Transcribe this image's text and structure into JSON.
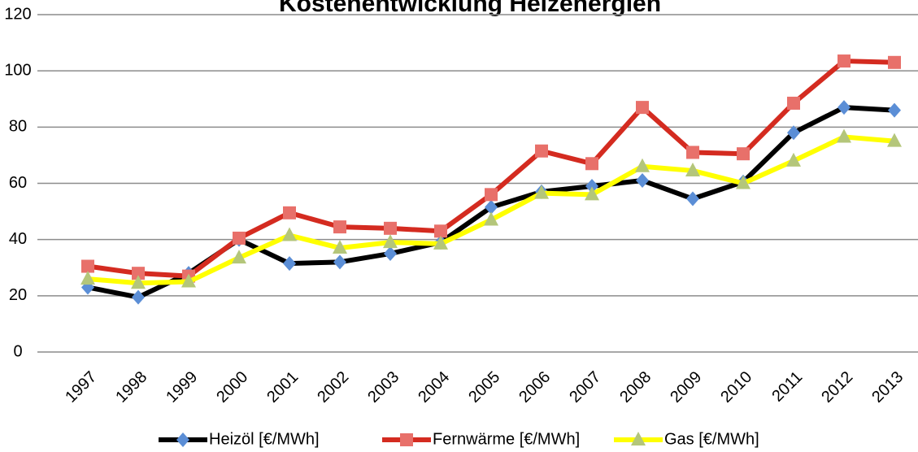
{
  "chart_data": {
    "type": "line",
    "title": "Kostenentwicklung Heizenergien",
    "categories": [
      "1997",
      "1998",
      "1999",
      "2000",
      "2001",
      "2002",
      "2003",
      "2004",
      "2005",
      "2006",
      "2007",
      "2008",
      "2009",
      "2010",
      "2011",
      "2012",
      "2013"
    ],
    "series": [
      {
        "name": "Heizöl [€/MWh]",
        "color": "#000000",
        "marker": "diamond",
        "marker_color": "#5b8ed6",
        "values": [
          23,
          19.5,
          28,
          40,
          31.5,
          32,
          35,
          39,
          51.5,
          57,
          59,
          61,
          54.5,
          60.5,
          78,
          87,
          86
        ]
      },
      {
        "name": "Fernwärme [€/MWh]",
        "color": "#d42b20",
        "marker": "square",
        "marker_color": "#e8706a",
        "values": [
          30.5,
          28,
          27,
          40.5,
          49.5,
          44.5,
          44,
          43,
          56,
          71.5,
          67,
          87,
          71,
          70.5,
          88.5,
          103.5,
          103
        ]
      },
      {
        "name": "Gas [€/MWh]",
        "color": "#ffff00",
        "marker": "triangle",
        "marker_color": "#b4c67a",
        "values": [
          26,
          24.5,
          25,
          33.5,
          41.5,
          37,
          39,
          38.5,
          47,
          56.5,
          56,
          66,
          64.5,
          60,
          68,
          76.5,
          75
        ]
      }
    ],
    "ylim": [
      0,
      120
    ],
    "yticks": [
      0,
      20,
      40,
      60,
      80,
      100,
      120
    ],
    "grid": true,
    "legend": "bottom"
  }
}
